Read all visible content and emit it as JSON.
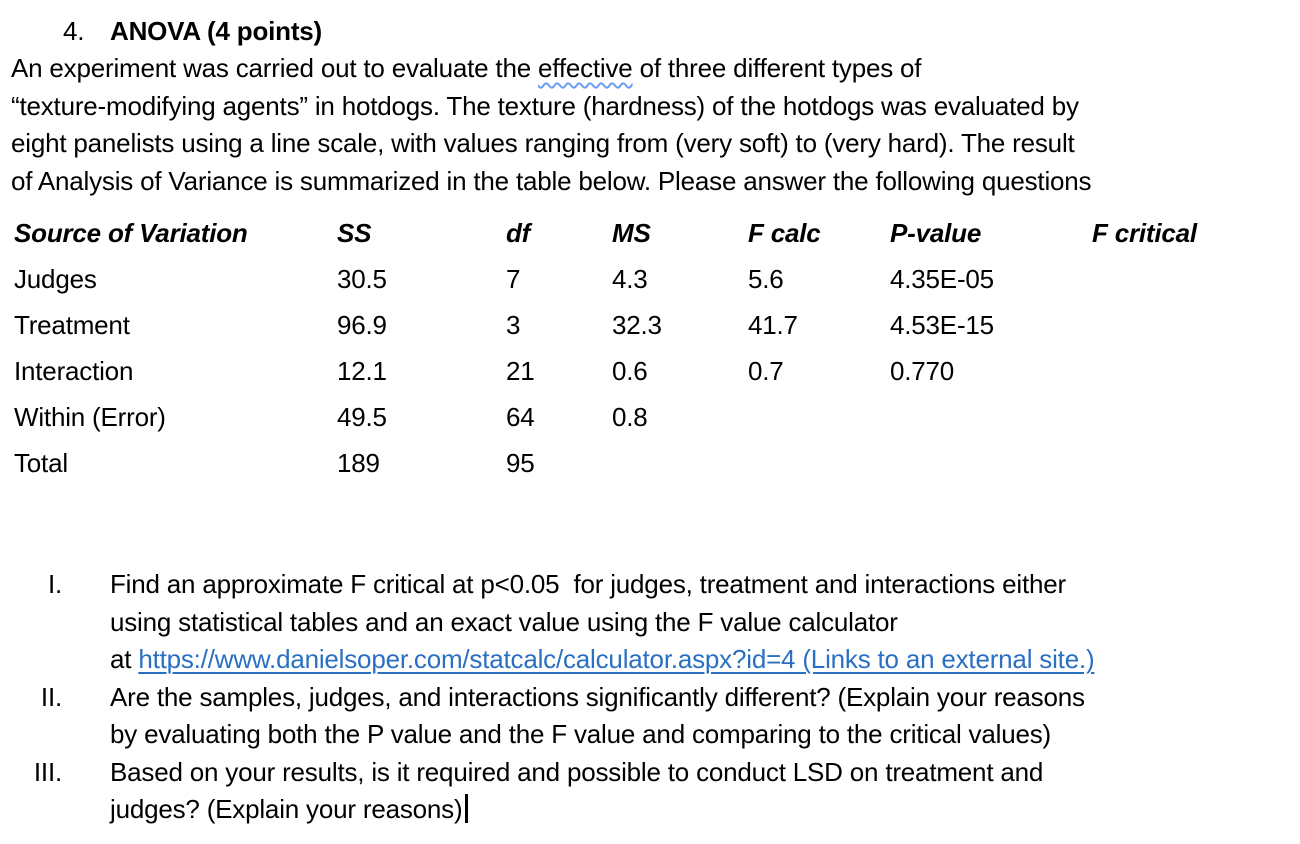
{
  "colors": {
    "text": "#000000",
    "link_blue": "#2a70c2",
    "spellcheck_squiggle_blue": "#6b9ff2",
    "background": "#ffffff"
  },
  "heading": {
    "number": "4.",
    "title": "ANOVA (4 points)"
  },
  "paragraph": {
    "line1_before": "An experiment was carried out to evaluate the ",
    "line1_misspelled_word": "effective",
    "line1_after": " of three different types of",
    "line2": "“texture-modifying agents” in hotdogs. The texture (hardness) of the hotdogs was evaluated by",
    "line3": "eight panelists using a line scale, with values ranging from (very soft) to (very hard). The result",
    "line4": "of Analysis of Variance is summarized in the table below. Please answer the following questions"
  },
  "anova_table": {
    "headers": [
      "Source of Variation",
      "SS",
      "df",
      "MS",
      "F calc",
      "P-value",
      "F critical"
    ],
    "rows": [
      {
        "source": "Judges",
        "ss": "30.5",
        "df": "7",
        "ms": "4.3",
        "f_calc": "5.6",
        "p_value": "4.35E-05",
        "f_critical": ""
      },
      {
        "source": "Treatment",
        "ss": "96.9",
        "df": "3",
        "ms": "32.3",
        "f_calc": "41.7",
        "p_value": "4.53E-15",
        "f_critical": ""
      },
      {
        "source": "Interaction",
        "ss": "12.1",
        "df": "21",
        "ms": "0.6",
        "f_calc": "0.7",
        "p_value": "0.770",
        "f_critical": ""
      },
      {
        "source": "Within (Error)",
        "ss": "49.5",
        "df": "64",
        "ms": "0.8",
        "f_calc": "",
        "p_value": "",
        "f_critical": ""
      },
      {
        "source": "Total",
        "ss": "189",
        "df": "95",
        "ms": "",
        "f_calc": "",
        "p_value": "",
        "f_critical": ""
      }
    ]
  },
  "questions": {
    "item1": {
      "numeral": "I.",
      "line1": "Find an approximate F critical at p<0.05  for judges, treatment and interactions either",
      "line2": "using statistical tables and an exact value using the F value calculator",
      "line3_prefix": "at ",
      "line3_link": "https://www.danielsoper.com/statcalc/calculator.aspx?id=4 (Links to an external site.)"
    },
    "item2": {
      "numeral": "II.",
      "line1": "Are the samples, judges, and interactions significantly different? (Explain your reasons",
      "line2": "by evaluating both the P value and the F value and comparing to the critical values)"
    },
    "item3": {
      "numeral": "III.",
      "line1": "Based on your results, is it required and possible to conduct LSD on treatment and",
      "line2": "judges? (Explain your reasons)"
    }
  }
}
